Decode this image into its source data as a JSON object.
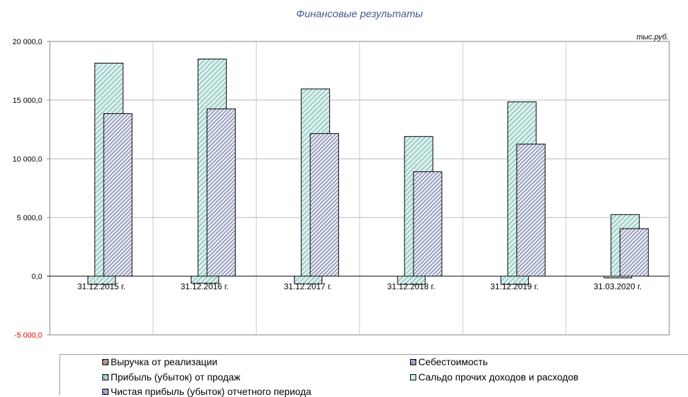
{
  "chart_data": {
    "type": "bar",
    "title": "Финансовые результаты",
    "unit_label": "тыс.руб.",
    "categories": [
      "31.12.2015 г.",
      "31.12.2016 г.",
      "31.12.2017 г.",
      "31.12.2018 г.",
      "31.12.2019 г.",
      "31.03.2020 г."
    ],
    "ylim": [
      -5000,
      20000
    ],
    "yticks": [
      {
        "value": 20000,
        "label": "20 000,0"
      },
      {
        "value": 15000,
        "label": "15 000,0"
      },
      {
        "value": 10000,
        "label": "10 000,0"
      },
      {
        "value": 5000,
        "label": "5 000,0"
      },
      {
        "value": 0,
        "label": "0,0"
      },
      {
        "value": -5000,
        "label": "-5 000,0"
      }
    ],
    "grid": true,
    "legend_position": "bottom",
    "series": [
      {
        "name": "Выручка от реализации",
        "values": [
          -700,
          -600,
          -650,
          -700,
          -700,
          -150
        ],
        "color": "#b0e0d0"
      },
      {
        "name": "Себестоимость",
        "values": [
          13850,
          14250,
          12150,
          8900,
          11250,
          4050
        ],
        "color": "#7080b0"
      },
      {
        "name": "Прибыль (убыток) от продаж",
        "values": [
          18150,
          18500,
          15950,
          11900,
          14850,
          5250
        ],
        "color": "#c8efe6"
      },
      {
        "name": "Сальдо прочих доходов и расходов",
        "values": [
          0,
          0,
          0,
          0,
          0,
          0
        ],
        "color": "#c8efe6"
      },
      {
        "name": "Чистая прибыль (убыток) отчетного периода",
        "values": [
          0,
          0,
          0,
          0,
          0,
          0
        ],
        "color": "#7080b0"
      }
    ]
  }
}
